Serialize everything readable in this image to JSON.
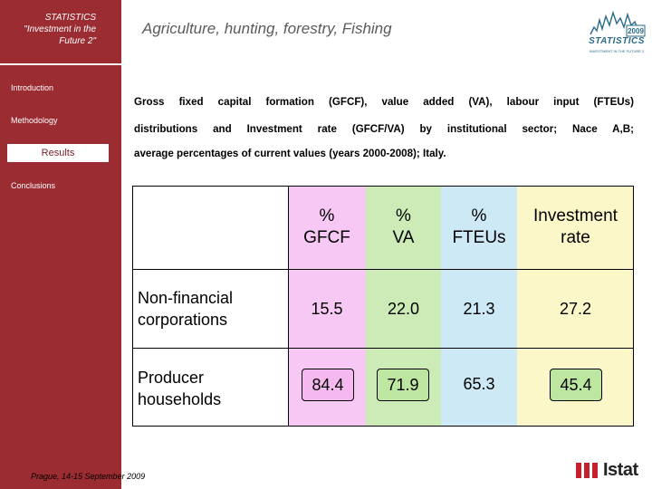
{
  "sidebar": {
    "header_lines": [
      "STATISTICS",
      "\"Investment in the",
      "Future 2\""
    ],
    "nav": [
      {
        "label": "Introduction"
      },
      {
        "label": "Methodology"
      },
      {
        "label": "Results",
        "active": true
      },
      {
        "label": "Conclusions"
      }
    ],
    "footer": "Prague, 14-15 September 2009"
  },
  "title": "Agriculture, hunting, forestry, Fishing",
  "logo": {
    "title": "STATISTICS",
    "subtitle": "INVESTMENT IN THE FUTURE 2",
    "year": "2009"
  },
  "description": {
    "line1": "Gross fixed capital formation (GFCF), value added (VA), labour input (FTEUs)",
    "line2": "distributions and Investment rate (GFCF/VA) by institutional sector; Nace A,B;",
    "line3": "average percentages of current values (years 2000-2008); Italy."
  },
  "table": {
    "columns": [
      "% GFCF",
      "% VA",
      "% FTEUs",
      "Investment rate"
    ],
    "column_display": [
      "%\nGFCF",
      "%\nVA",
      "%\nFTEUs",
      "Investment\nrate"
    ],
    "rows": [
      {
        "label": "Non-financial\ncorporations",
        "values": [
          "15.5",
          "22.0",
          "21.3",
          "27.2"
        ],
        "boxed": [
          false,
          false,
          false,
          false
        ]
      },
      {
        "label": "Producer\nhouseholds",
        "values": [
          "84.4",
          "71.9",
          "65.3",
          "45.4"
        ],
        "boxed": [
          true,
          true,
          false,
          true
        ]
      }
    ],
    "column_colors": [
      "#f7c8f4",
      "#cdebb6",
      "#cde9f5",
      "#fbf7c8"
    ],
    "box_colors": [
      "#f5b9ef",
      "#bde7a0",
      "",
      "#bde7a0"
    ]
  },
  "brand": {
    "sidebar_color": "#9a2c32",
    "istat_word": "Istat",
    "istat_color": "#c4202e"
  }
}
